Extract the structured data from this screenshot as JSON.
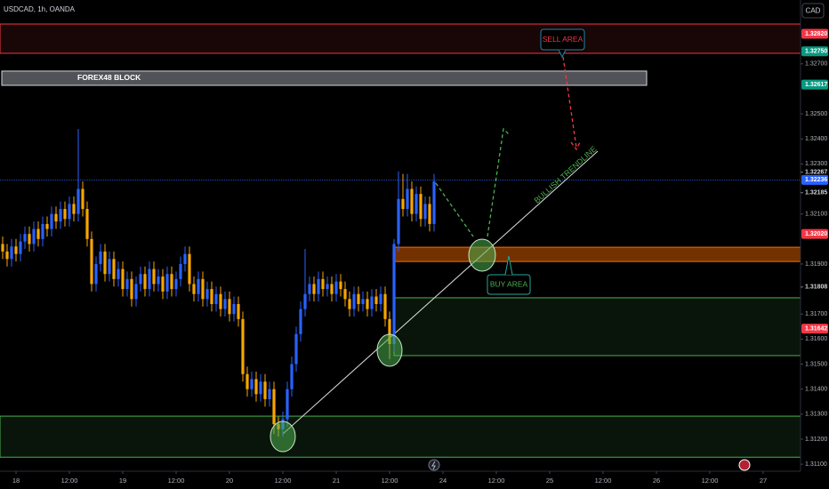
{
  "header": {
    "symbol": "USDCAD, 1h, OANDA",
    "currency": "CAD"
  },
  "chart_data": {
    "type": "candlestick",
    "x": [
      -3,
      -2,
      -1,
      0,
      1,
      2,
      3,
      4,
      5,
      6,
      7,
      8,
      9,
      10,
      11,
      12,
      13,
      14,
      15,
      16,
      17,
      18,
      19,
      20,
      21,
      22,
      23,
      24,
      25,
      26,
      27,
      28,
      29,
      30,
      31,
      32,
      33,
      34,
      35,
      36,
      37,
      38,
      39,
      40,
      41,
      42,
      43,
      44,
      45,
      46,
      47,
      48,
      49,
      50,
      51,
      52,
      53,
      54,
      55,
      56,
      57,
      58,
      59,
      60,
      61,
      62,
      63,
      64,
      65,
      66,
      67,
      68,
      69,
      70,
      71,
      72,
      73,
      74,
      75,
      76,
      77,
      78,
      79,
      80,
      81,
      82,
      83,
      84,
      85,
      86,
      87,
      88,
      89,
      90,
      91,
      92,
      93,
      94
    ],
    "open": [
      1.3198,
      1.3195,
      1.3192,
      1.3197,
      1.3194,
      1.3199,
      1.3202,
      1.3198,
      1.3204,
      1.32,
      1.3206,
      1.3204,
      1.321,
      1.3207,
      1.3212,
      1.3208,
      1.3214,
      1.321,
      1.322,
      1.3212,
      1.32,
      1.3182,
      1.319,
      1.3195,
      1.3186,
      1.3192,
      1.3184,
      1.3188,
      1.318,
      1.3184,
      1.3176,
      1.3182,
      1.3186,
      1.318,
      1.3188,
      1.3182,
      1.3185,
      1.3179,
      1.3186,
      1.318,
      1.3184,
      1.319,
      1.3194,
      1.3182,
      1.3178,
      1.3184,
      1.3176,
      1.318,
      1.3174,
      1.3178,
      1.3172,
      1.3176,
      1.317,
      1.3174,
      1.3168,
      1.3146,
      1.314,
      1.3144,
      1.3138,
      1.3143,
      1.3136,
      1.314,
      1.3126,
      1.3124,
      1.3128,
      1.314,
      1.315,
      1.3162,
      1.3172,
      1.3178,
      1.3182,
      1.3178,
      1.3184,
      1.318,
      1.3182,
      1.3178,
      1.3183,
      1.318,
      1.3176,
      1.3172,
      1.3178,
      1.3174,
      1.3176,
      1.3172,
      1.3177,
      1.3174,
      1.3178,
      1.3168,
      1.3158,
      1.3198,
      1.3216,
      1.3212,
      1.322,
      1.321,
      1.3218,
      1.3208,
      1.3214,
      1.3206
    ],
    "high": [
      1.3201,
      1.3198,
      1.32,
      1.32,
      1.3202,
      1.3205,
      1.3205,
      1.3207,
      1.3207,
      1.3209,
      1.3209,
      1.3213,
      1.3213,
      1.3215,
      1.3215,
      1.3217,
      1.3217,
      1.3244,
      1.3223,
      1.3215,
      1.3203,
      1.3193,
      1.3198,
      1.3198,
      1.3195,
      1.3195,
      1.3191,
      1.3191,
      1.3187,
      1.3187,
      1.3185,
      1.3189,
      1.3189,
      1.3191,
      1.3191,
      1.3188,
      1.3188,
      1.3189,
      1.3189,
      1.3187,
      1.3193,
      1.3197,
      1.3197,
      1.3185,
      1.3187,
      1.3187,
      1.3183,
      1.3183,
      1.3181,
      1.3181,
      1.3179,
      1.3179,
      1.3177,
      1.3177,
      1.3171,
      1.3149,
      1.3147,
      1.3147,
      1.3146,
      1.3146,
      1.3143,
      1.3143,
      1.3129,
      1.3131,
      1.3143,
      1.3153,
      1.3165,
      1.3175,
      1.3196,
      1.3185,
      1.3185,
      1.3187,
      1.3187,
      1.3185,
      1.3185,
      1.3186,
      1.3186,
      1.3183,
      1.3179,
      1.3181,
      1.3181,
      1.3179,
      1.3179,
      1.318,
      1.318,
      1.3181,
      1.3181,
      1.3171,
      1.32,
      1.3227,
      1.3226,
      1.3226,
      1.3223,
      1.3221,
      1.3221,
      1.3217,
      1.3217,
      1.3226
    ],
    "low": [
      1.3192,
      1.3189,
      1.3189,
      1.3191,
      1.3191,
      1.3196,
      1.3195,
      1.3195,
      1.3197,
      1.3197,
      1.3201,
      1.3201,
      1.3204,
      1.3204,
      1.3205,
      1.3205,
      1.3207,
      1.3207,
      1.3209,
      1.3197,
      1.3179,
      1.3179,
      1.3187,
      1.3183,
      1.3183,
      1.3181,
      1.3181,
      1.3177,
      1.3177,
      1.3173,
      1.3173,
      1.3179,
      1.3177,
      1.3177,
      1.3179,
      1.3179,
      1.3176,
      1.3176,
      1.3177,
      1.3177,
      1.3181,
      1.3187,
      1.3179,
      1.3175,
      1.3175,
      1.3173,
      1.3173,
      1.3171,
      1.3171,
      1.3169,
      1.3169,
      1.3167,
      1.3167,
      1.3165,
      1.3143,
      1.3137,
      1.3137,
      1.3135,
      1.3135,
      1.3133,
      1.3133,
      1.3122,
      1.3121,
      1.3121,
      1.3125,
      1.3137,
      1.3147,
      1.3159,
      1.3169,
      1.3175,
      1.3175,
      1.3175,
      1.3177,
      1.3177,
      1.3175,
      1.3175,
      1.3177,
      1.3173,
      1.3169,
      1.3169,
      1.3171,
      1.3171,
      1.3169,
      1.3169,
      1.3171,
      1.3171,
      1.3165,
      1.3152,
      1.3155,
      1.3195,
      1.3209,
      1.3209,
      1.3207,
      1.3207,
      1.3205,
      1.3205,
      1.3203,
      1.3203
    ],
    "close": [
      1.3195,
      1.3192,
      1.3197,
      1.3194,
      1.3199,
      1.3202,
      1.3198,
      1.3204,
      1.32,
      1.3206,
      1.3204,
      1.321,
      1.3207,
      1.3212,
      1.3208,
      1.3214,
      1.321,
      1.322,
      1.3212,
      1.32,
      1.3182,
      1.319,
      1.3195,
      1.3186,
      1.3192,
      1.3184,
      1.3188,
      1.318,
      1.3184,
      1.3176,
      1.3182,
      1.3186,
      1.318,
      1.3188,
      1.3182,
      1.3185,
      1.3179,
      1.3186,
      1.318,
      1.3184,
      1.319,
      1.3194,
      1.3182,
      1.3178,
      1.3184,
      1.3176,
      1.318,
      1.3174,
      1.3178,
      1.3172,
      1.3176,
      1.317,
      1.3174,
      1.3168,
      1.3146,
      1.314,
      1.3144,
      1.3138,
      1.3143,
      1.3136,
      1.314,
      1.3126,
      1.3124,
      1.3128,
      1.314,
      1.315,
      1.3162,
      1.3172,
      1.3178,
      1.3182,
      1.3178,
      1.3184,
      1.318,
      1.3182,
      1.3178,
      1.3183,
      1.318,
      1.3176,
      1.3172,
      1.3178,
      1.3174,
      1.3176,
      1.3172,
      1.3177,
      1.3174,
      1.3178,
      1.3168,
      1.3158,
      1.3198,
      1.3216,
      1.3212,
      1.322,
      1.321,
      1.3218,
      1.3208,
      1.3214,
      1.3206,
      1.3223
    ],
    "up_color": "#2962ff",
    "down_color": "#f7a600",
    "xlim": [
      -3.6,
      176.4
    ],
    "ylim": [
      1.31072,
      1.32955
    ],
    "xticks": [
      {
        "value": 0,
        "label": "18"
      },
      {
        "value": 12,
        "label": "12:00"
      },
      {
        "value": 24,
        "label": "19"
      },
      {
        "value": 36,
        "label": "12:00"
      },
      {
        "value": 48,
        "label": "20"
      },
      {
        "value": 60,
        "label": "12:00"
      },
      {
        "value": 72,
        "label": "21"
      },
      {
        "value": 84,
        "label": "12:00"
      },
      {
        "value": 96,
        "label": "24"
      },
      {
        "value": 108,
        "label": "12:00"
      },
      {
        "value": 120,
        "label": "25"
      },
      {
        "value": 132,
        "label": "12:00"
      },
      {
        "value": 144,
        "label": "26"
      },
      {
        "value": 156,
        "label": "12:00"
      },
      {
        "value": 168,
        "label": "27"
      }
    ],
    "yticks": [
      {
        "value": 1.311,
        "label": "1.31100"
      },
      {
        "value": 1.312,
        "label": "1.31200"
      },
      {
        "value": 1.313,
        "label": "1.31300"
      },
      {
        "value": 1.314,
        "label": "1.31400"
      },
      {
        "value": 1.315,
        "label": "1.31500"
      },
      {
        "value": 1.316,
        "label": "1.31600"
      },
      {
        "value": 1.317,
        "label": "1.31700"
      },
      {
        "value": 1.319,
        "label": "1.31900"
      },
      {
        "value": 1.321,
        "label": "1.32100"
      },
      {
        "value": 1.323,
        "label": "1.32300"
      },
      {
        "value": 1.324,
        "label": "1.32400"
      },
      {
        "value": 1.325,
        "label": "1.32500"
      },
      {
        "value": 1.327,
        "label": "1.32700"
      }
    ],
    "grid": false,
    "price_labels": [
      {
        "value": 1.3282,
        "label": "1.32820",
        "color": "#f23645"
      },
      {
        "value": 1.3275,
        "label": "1.32750",
        "color": "#089981"
      },
      {
        "value": 1.32617,
        "label": "1.32617",
        "color": "#089981"
      },
      {
        "value": 1.32267,
        "label": "1.32267"
      },
      {
        "value": 1.32236,
        "label": "1.32236",
        "color": "#2962ff"
      },
      {
        "value": 1.32185,
        "label": "1.32185"
      },
      {
        "value": 1.3202,
        "label": "1.32020",
        "color": "#f23645"
      },
      {
        "value": 1.31808,
        "label": "1.31808"
      },
      {
        "value": 1.31642,
        "label": "1.31642",
        "color": "#f23645"
      }
    ],
    "price_line": 1.32236,
    "zones": [
      {
        "top": 1.32859,
        "bottom": 1.32742,
        "color": "#f23645"
      },
      {
        "top": 1.32671,
        "bottom": 1.32614,
        "color": "#9598a1",
        "label": "FOREX48 BLOCK"
      },
      {
        "top": 1.31967,
        "bottom": 1.3191,
        "color": "#ff6d00"
      },
      {
        "top": 1.31765,
        "bottom": 1.31534,
        "color": "#4caf50"
      },
      {
        "top": 1.31292,
        "bottom": 1.31128,
        "color": "#4caf50"
      }
    ],
    "trendline": {
      "x": [
        60,
        130.8
      ],
      "y": [
        1.31221,
        1.32351
      ],
      "label": "BULLISH TRENDLINE"
    },
    "annotations": [
      "SELL AREA",
      "BUY AREA"
    ]
  }
}
